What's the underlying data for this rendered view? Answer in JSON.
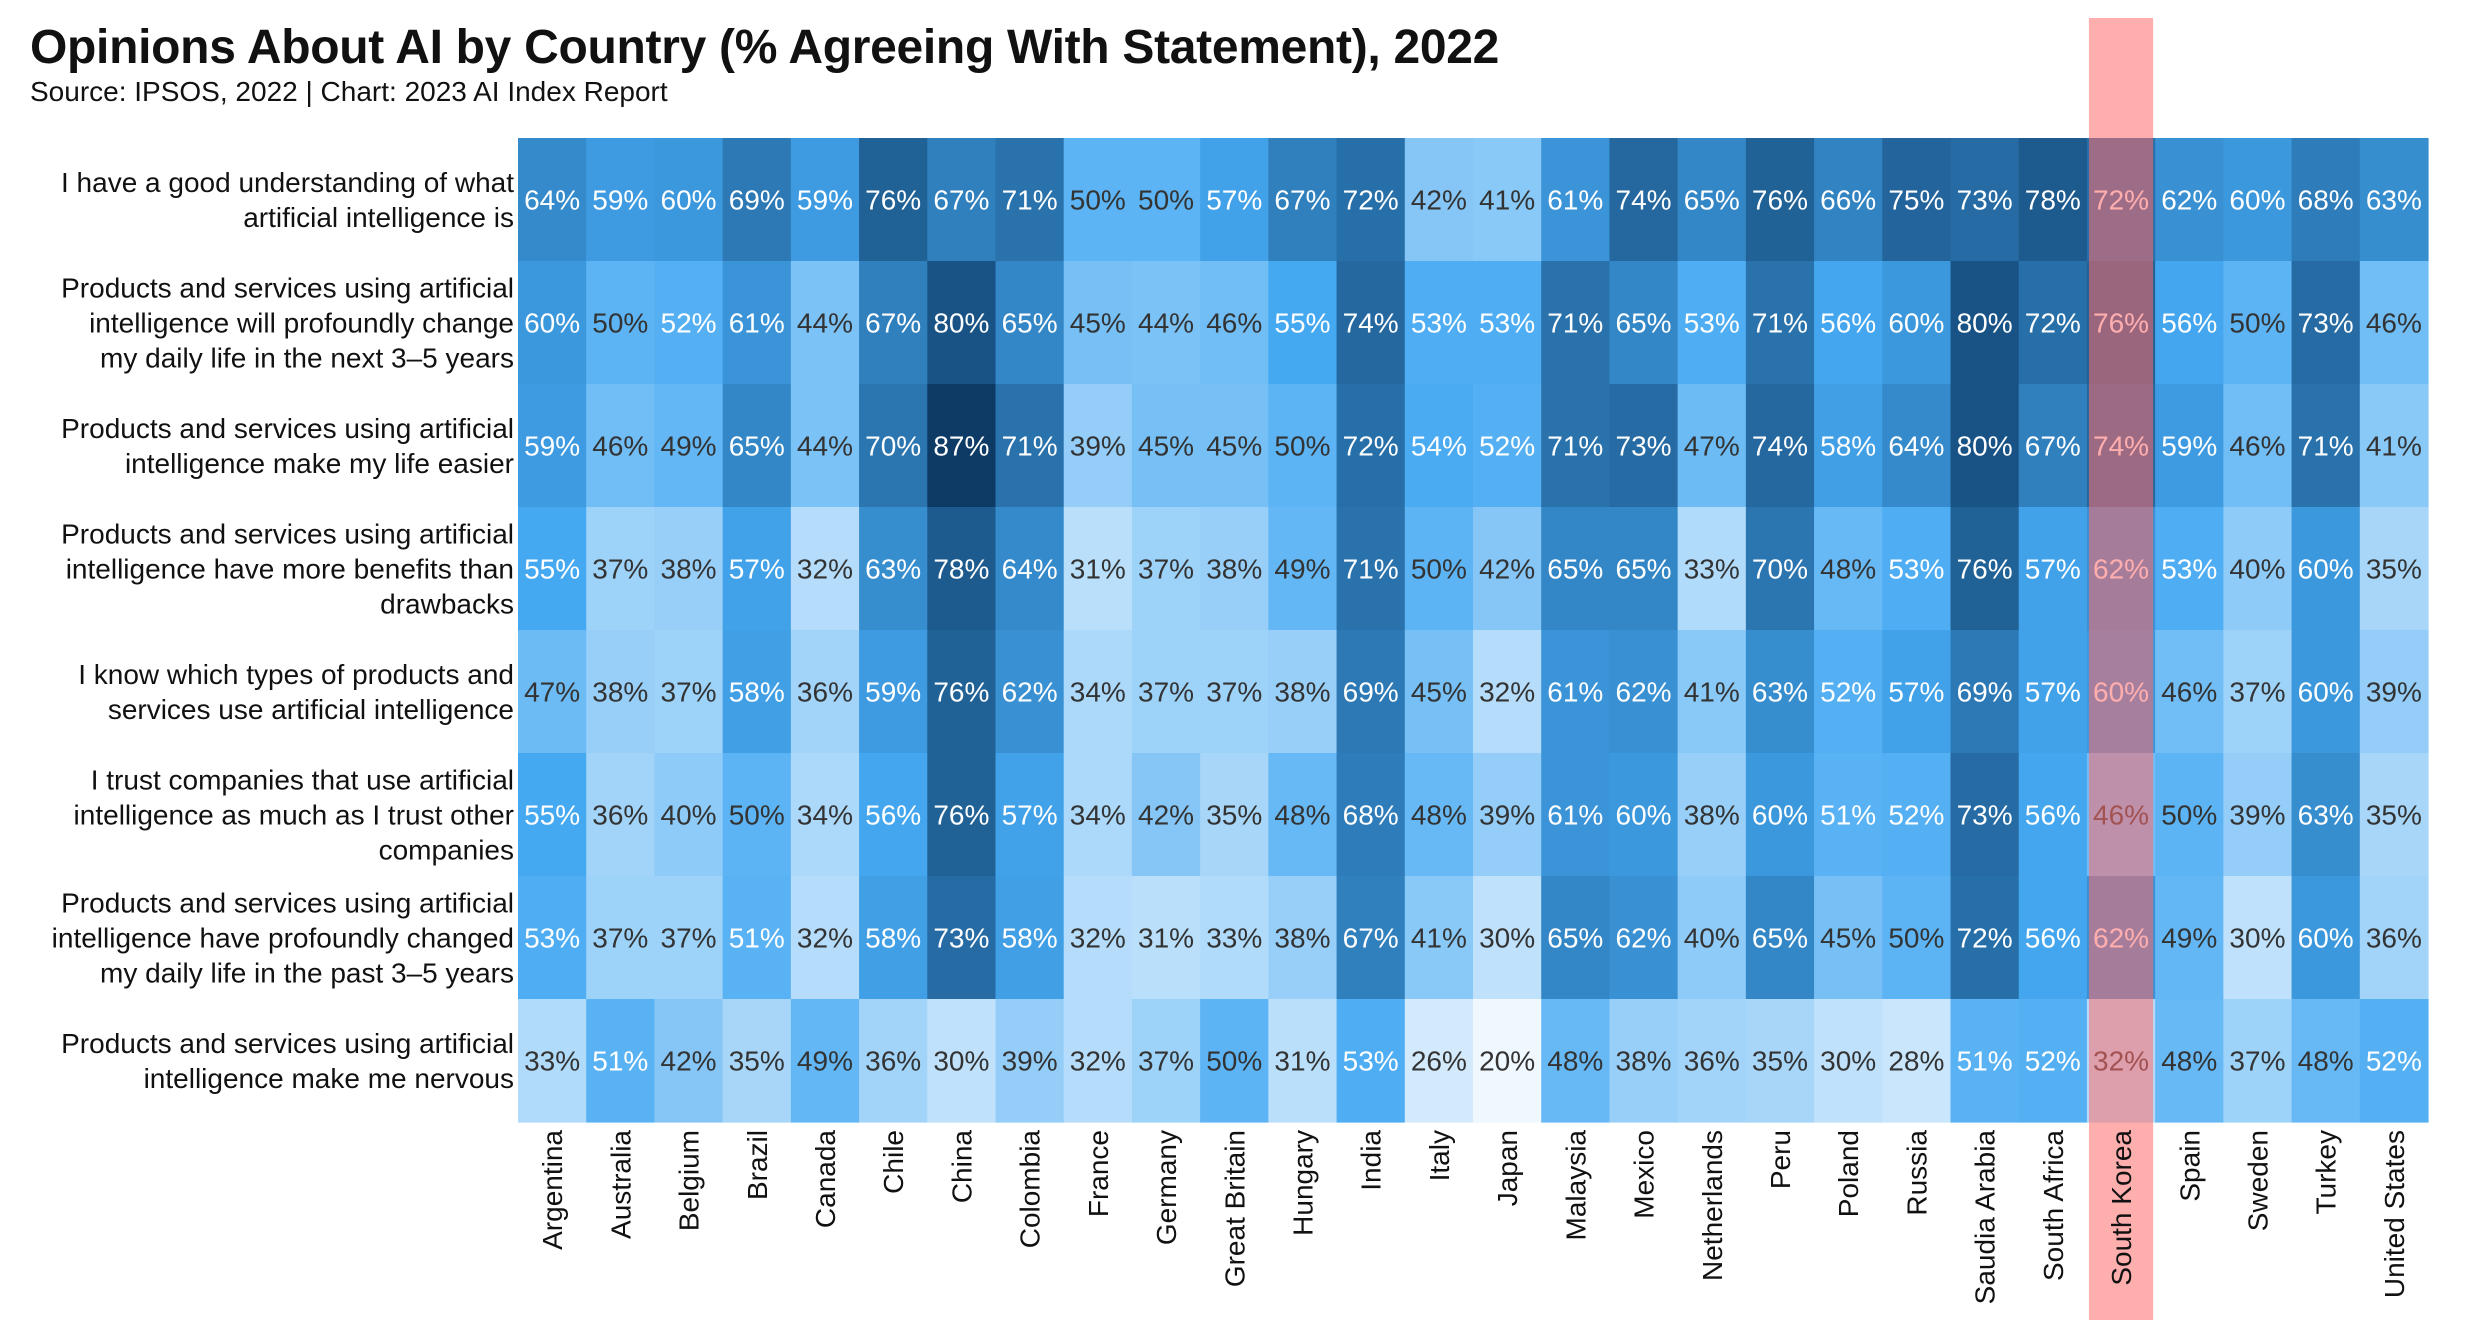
{
  "title": "Opinions About AI by Country (% Agreeing With Statement), 2022",
  "subtitle": "Source: IPSOS, 2022 | Chart: 2023 AI Index Report",
  "colors": {
    "min": "#f0f8ff",
    "mid": "#45a9f2",
    "max": "#0d3b66",
    "highlight": "#ff6b6b",
    "highlight_label": "#d94848",
    "text_light": "#ffffff",
    "text_dark": "#333333"
  },
  "chart_data": {
    "type": "heatmap",
    "value_suffix": "%",
    "highlight_column": "South Korea",
    "columns": [
      "Argentina",
      "Australia",
      "Belgium",
      "Brazil",
      "Canada",
      "Chile",
      "China",
      "Colombia",
      "France",
      "Germany",
      "Great Britain",
      "Hungary",
      "India",
      "Italy",
      "Japan",
      "Malaysia",
      "Mexico",
      "Netherlands",
      "Peru",
      "Poland",
      "Russia",
      "Saudia Arabia",
      "South Africa",
      "South Korea",
      "Spain",
      "Sweden",
      "Turkey",
      "United States"
    ],
    "rows": [
      {
        "label": [
          "I have a good understanding of what",
          "artificial intelligence is"
        ],
        "values": [
          64,
          59,
          60,
          69,
          59,
          76,
          67,
          71,
          50,
          50,
          57,
          67,
          72,
          42,
          41,
          61,
          74,
          65,
          76,
          66,
          75,
          73,
          78,
          72,
          62,
          60,
          68,
          63
        ]
      },
      {
        "label": [
          "Products and services using artificial",
          "intelligence will profoundly change",
          "my daily life in the next 3–5 years"
        ],
        "values": [
          60,
          50,
          52,
          61,
          44,
          67,
          80,
          65,
          45,
          44,
          46,
          55,
          74,
          53,
          53,
          71,
          65,
          53,
          71,
          56,
          60,
          80,
          72,
          76,
          56,
          50,
          73,
          46
        ]
      },
      {
        "label": [
          "Products and services using artificial",
          "intelligence make my life easier"
        ],
        "values": [
          59,
          46,
          49,
          65,
          44,
          70,
          87,
          71,
          39,
          45,
          45,
          50,
          72,
          54,
          52,
          71,
          73,
          47,
          74,
          58,
          64,
          80,
          67,
          74,
          59,
          46,
          71,
          41
        ]
      },
      {
        "label": [
          "Products and services using artificial",
          "intelligence have more benefits than",
          "drawbacks"
        ],
        "values": [
          55,
          37,
          38,
          57,
          32,
          63,
          78,
          64,
          31,
          37,
          38,
          49,
          71,
          50,
          42,
          65,
          65,
          33,
          70,
          48,
          53,
          76,
          57,
          62,
          53,
          40,
          60,
          35
        ]
      },
      {
        "label": [
          "I know which types of products and",
          "services use artificial intelligence"
        ],
        "values": [
          47,
          38,
          37,
          58,
          36,
          59,
          76,
          62,
          34,
          37,
          37,
          38,
          69,
          45,
          32,
          61,
          62,
          41,
          63,
          52,
          57,
          69,
          57,
          60,
          46,
          37,
          60,
          39
        ]
      },
      {
        "label": [
          "I trust companies that use artificial",
          "intelligence as much as I trust other",
          "companies"
        ],
        "values": [
          55,
          36,
          40,
          50,
          34,
          56,
          76,
          57,
          34,
          42,
          35,
          48,
          68,
          48,
          39,
          61,
          60,
          38,
          60,
          51,
          52,
          73,
          56,
          46,
          50,
          39,
          63,
          35
        ]
      },
      {
        "label": [
          "Products and services using artificial",
          "intelligence have profoundly changed",
          "my daily life in the past 3–5 years"
        ],
        "values": [
          53,
          37,
          37,
          51,
          32,
          58,
          73,
          58,
          32,
          31,
          33,
          38,
          67,
          41,
          30,
          65,
          62,
          40,
          65,
          45,
          50,
          72,
          56,
          62,
          49,
          30,
          60,
          36
        ]
      },
      {
        "label": [
          "Products and services using artificial",
          "intelligence make me nervous"
        ],
        "values": [
          33,
          51,
          42,
          35,
          49,
          36,
          30,
          39,
          32,
          37,
          50,
          31,
          53,
          26,
          20,
          48,
          38,
          36,
          35,
          30,
          28,
          51,
          52,
          32,
          48,
          37,
          48,
          52
        ]
      }
    ]
  }
}
